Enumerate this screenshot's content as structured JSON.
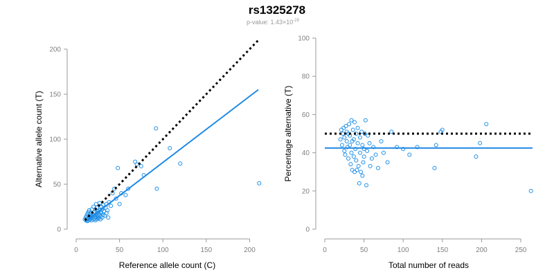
{
  "title": "rs1325278",
  "subtitle": {
    "prefix": "p-value: 1.43×10",
    "exponent": "-29"
  },
  "chart_data": [
    {
      "type": "scatter",
      "xlabel": "Reference allele count (C)",
      "ylabel": "Alternative allele count (T)",
      "xlim": [
        0,
        210
      ],
      "ylim": [
        0,
        200
      ],
      "xticks": [
        0,
        50,
        100,
        150,
        200
      ],
      "yticks": [
        0,
        50,
        100,
        150,
        200
      ],
      "colors": {
        "points": "#1f8fe6",
        "fit": "#1e88e5",
        "reference": "#000000"
      },
      "reference_line": {
        "style": "dotted",
        "x": [
          10,
          210
        ],
        "y": [
          10,
          210
        ]
      },
      "fit_line": {
        "style": "solid",
        "x": [
          10,
          210
        ],
        "y": [
          8,
          155
        ]
      },
      "points": {
        "x": [
          10,
          11,
          12,
          12,
          13,
          13,
          14,
          14,
          15,
          15,
          15,
          16,
          16,
          16,
          17,
          17,
          18,
          18,
          18,
          19,
          19,
          20,
          20,
          20,
          21,
          21,
          22,
          22,
          22,
          23,
          23,
          23,
          24,
          24,
          24,
          25,
          25,
          25,
          26,
          26,
          27,
          27,
          27,
          28,
          28,
          28,
          29,
          29,
          30,
          30,
          31,
          31,
          32,
          33,
          34,
          35,
          35,
          36,
          37,
          38,
          40,
          42,
          44,
          46,
          48,
          50,
          52,
          57,
          60,
          68,
          70,
          75,
          78,
          92,
          93,
          108,
          120,
          211
        ],
        "y": [
          11,
          13,
          10,
          15,
          9,
          17,
          12,
          19,
          10,
          14,
          21,
          11,
          16,
          13,
          12,
          18,
          10,
          14,
          22,
          13,
          17,
          11,
          15,
          25,
          12,
          19,
          14,
          22,
          10,
          16,
          28,
          13,
          11,
          18,
          24,
          15,
          20,
          13,
          17,
          12,
          21,
          16,
          29,
          14,
          19,
          11,
          18,
          25,
          13,
          22,
          16,
          27,
          20,
          15,
          24,
          18,
          28,
          21,
          13,
          30,
          26,
          40,
          45,
          34,
          68,
          28,
          40,
          38,
          45,
          75,
          72,
          70,
          60,
          112,
          45,
          90,
          73,
          51
        ]
      }
    },
    {
      "type": "scatter",
      "xlabel": "Total number of reads",
      "ylabel": "Percentage alternative (T)",
      "xlim": [
        0,
        265
      ],
      "ylim": [
        0,
        100
      ],
      "xticks": [
        0,
        50,
        100,
        150,
        200,
        250
      ],
      "yticks": [
        0,
        20,
        40,
        60,
        80,
        100
      ],
      "colors": {
        "points": "#1f8fe6",
        "fit": "#1e88e5",
        "reference": "#000000"
      },
      "reference_line": {
        "style": "dotted",
        "x": [
          0,
          265
        ],
        "y": [
          50,
          50
        ]
      },
      "fit_line": {
        "style": "solid",
        "x": [
          0,
          265
        ],
        "y": [
          42.5,
          42.5
        ]
      },
      "points": {
        "x": [
          20,
          21,
          22,
          23,
          24,
          25,
          25,
          26,
          27,
          28,
          28,
          29,
          30,
          30,
          31,
          32,
          32,
          33,
          34,
          34,
          35,
          35,
          36,
          37,
          37,
          38,
          38,
          39,
          40,
          40,
          41,
          42,
          42,
          43,
          44,
          45,
          45,
          46,
          47,
          48,
          48,
          49,
          50,
          50,
          51,
          52,
          53,
          54,
          55,
          57,
          58,
          60,
          62,
          65,
          68,
          72,
          75,
          80,
          85,
          92,
          100,
          108,
          118,
          140,
          142,
          148,
          150,
          193,
          198,
          206,
          263
        ],
        "y": [
          47,
          52,
          44,
          50,
          53,
          41,
          48,
          39,
          54,
          46,
          51,
          43,
          50,
          37,
          55,
          44,
          49,
          34,
          57,
          40,
          46,
          31,
          52,
          38,
          47,
          30,
          56,
          42,
          36,
          50,
          31,
          45,
          53,
          33,
          24,
          40,
          48,
          30,
          51,
          28,
          44,
          35,
          38,
          42,
          50,
          57,
          23,
          41,
          49,
          45,
          33,
          37,
          43,
          39,
          32,
          46,
          40,
          35,
          51,
          43,
          42,
          39,
          43,
          32,
          44,
          51,
          52,
          38,
          45,
          55,
          20
        ]
      }
    }
  ]
}
